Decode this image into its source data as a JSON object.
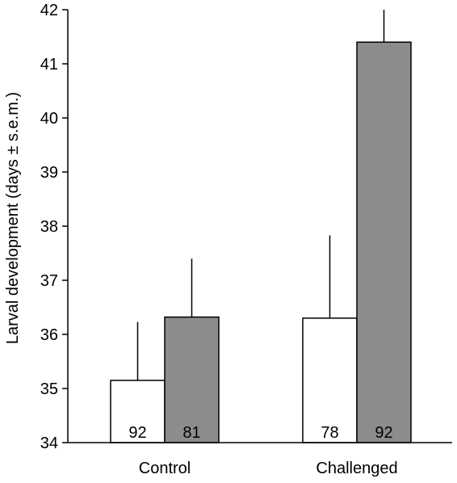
{
  "chart_data": {
    "type": "bar",
    "title": "",
    "xlabel": "",
    "ylabel": "Larval development (days ± s.e.m.)",
    "ylim": [
      34,
      42
    ],
    "yticks": [
      "34",
      "35",
      "36",
      "37",
      "38",
      "39",
      "40",
      "41",
      "42"
    ],
    "categories": [
      "Control",
      "Challenged"
    ],
    "grid": false,
    "series": [
      {
        "fill": "#ffffff",
        "values": [
          35.15,
          36.3
        ],
        "errors": [
          1.08,
          1.53
        ],
        "n_labels": [
          "92",
          "78"
        ]
      },
      {
        "fill": "#8c8c8c",
        "values": [
          36.32,
          41.4
        ],
        "errors": [
          1.08,
          0.75
        ],
        "n_labels": [
          "81",
          "92"
        ]
      }
    ]
  }
}
